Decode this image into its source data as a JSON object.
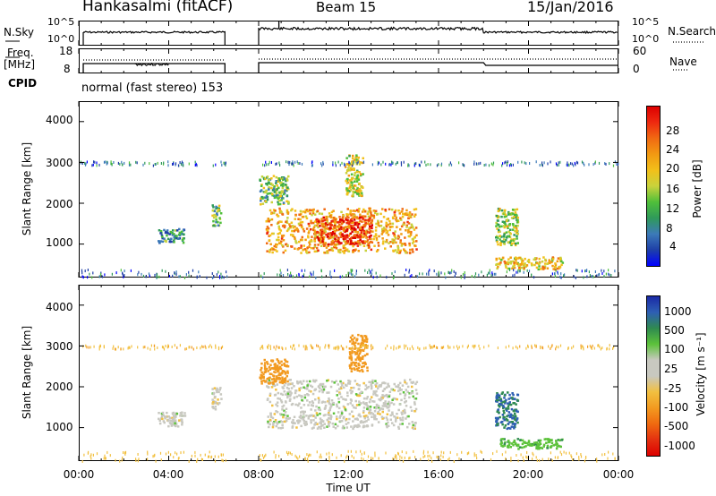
{
  "header": {
    "station": "Hankasalmi (fitACF)",
    "beam": "Beam 15",
    "date": "15/Jan/2016"
  },
  "noise_panel": {
    "left_label": "N.Sky",
    "left_ticks": [
      "10^5",
      "10^0"
    ],
    "right_label": "N.Search",
    "right_ticks": [
      "10^5",
      "10^0"
    ],
    "right_legend_line": "dotted"
  },
  "freq_panel": {
    "left_label_line1": "Freq.",
    "left_label_line2": "[MHz]",
    "left_ticks": [
      "18",
      "8"
    ],
    "right_label": "Nave",
    "right_ticks": [
      "60",
      "0"
    ],
    "right_legend_line": "dotted"
  },
  "cpid_panel": {
    "label": "CPID",
    "text": "normal (fast stereo) 153"
  },
  "power_colorbar": {
    "label": "Power [dB]",
    "ticks": [
      "28",
      "24",
      "20",
      "16",
      "12",
      "8",
      "4"
    ],
    "colors": [
      "#0000ff",
      "#1e3fa8",
      "#3c7ab8",
      "#2f9a5a",
      "#4fbf3a",
      "#c8d23c",
      "#f2c01a",
      "#f29a12",
      "#f06a12",
      "#ee2a10",
      "#dd0000"
    ]
  },
  "velocity_colorbar": {
    "label": "Velocity [m s⁻¹]",
    "ticks": [
      "1000",
      "500",
      "100",
      "25",
      "-25",
      "-100",
      "-500",
      "-1000"
    ],
    "colors": [
      "#1a2aa6",
      "#2e5fb4",
      "#2f8a50",
      "#5cc23a",
      "#c8c8c0",
      "#f2c040",
      "#f29a20",
      "#f06a10",
      "#e43010",
      "#dd0000"
    ]
  },
  "chart_data": [
    {
      "type": "line",
      "title": "Hankasalmi (fitACF)  Beam 15  15/Jan/2016",
      "xlabel": "Time UT",
      "x_ticks": [
        "00:00",
        "04:00",
        "08:00",
        "12:00",
        "16:00",
        "20:00",
        "00:00"
      ],
      "xlim_hours": [
        0,
        24
      ],
      "data_gap_hours": [
        6.6,
        8.0
      ],
      "series": [
        {
          "name": "N.Sky",
          "values": [
            {
              "t": 0.2,
              "level": "low"
            },
            {
              "t": 6.5,
              "level": "low"
            },
            {
              "t": 8.0,
              "level": "high"
            },
            {
              "t": 18.0,
              "level": "high"
            },
            {
              "t": 18.2,
              "level": "medium"
            },
            {
              "t": 24,
              "level": "medium"
            }
          ]
        },
        {
          "name": "N.Search",
          "line": "dotted"
        }
      ]
    },
    {
      "type": "line",
      "ylabel": "Freq. [MHz]",
      "ylim": [
        8,
        18
      ],
      "series": [
        {
          "name": "Freq.",
          "x": [
            0.2,
            6.5,
            8.0,
            18.0,
            18.2,
            24
          ],
          "values": [
            12.5,
            12.5,
            12.6,
            12.6,
            12.0,
            12.0
          ]
        },
        {
          "name": "Nave",
          "line": "dotted",
          "ylim": [
            0,
            60
          ],
          "x": [
            0.2,
            6.5,
            8.0,
            24
          ],
          "values": [
            33,
            33,
            34,
            34
          ]
        }
      ]
    },
    {
      "type": "heatmap",
      "ylabel": "Slant Range [km]",
      "y_ticks": [
        "4000",
        "3000",
        "2000",
        "1000"
      ],
      "ylim": [
        180,
        4500
      ],
      "value_label": "Power [dB]",
      "scatter_patches": [
        {
          "t": [
            3.5,
            4.7
          ],
          "r": [
            1050,
            1400
          ],
          "value": 8
        },
        {
          "t": [
            5.9,
            6.3
          ],
          "r": [
            1450,
            2000
          ],
          "value": 12
        },
        {
          "t": [
            8.3,
            15.0
          ],
          "r": [
            800,
            1900
          ],
          "value": 20
        },
        {
          "t": [
            10.5,
            13.0
          ],
          "r": [
            1000,
            1700
          ],
          "value": 26
        },
        {
          "t": [
            8.0,
            9.3
          ],
          "r": [
            2000,
            2700
          ],
          "value": 12
        },
        {
          "t": [
            11.8,
            12.6
          ],
          "r": [
            2200,
            3200
          ],
          "value": 16
        },
        {
          "t": [
            18.5,
            19.5
          ],
          "r": [
            1000,
            1900
          ],
          "value": 14
        },
        {
          "t": [
            18.5,
            21.5
          ],
          "r": [
            400,
            700
          ],
          "value": 18
        },
        {
          "t": [
            0,
            24
          ],
          "r": [
            200,
            400
          ],
          "value": 6
        },
        {
          "t": [
            0,
            24
          ],
          "r": [
            2950,
            3050
          ],
          "value": 6
        }
      ]
    },
    {
      "type": "heatmap",
      "ylabel": "Slant Range [km]",
      "xlabel": "Time UT",
      "y_ticks": [
        "4000",
        "3000",
        "2000",
        "1000"
      ],
      "ylim": [
        180,
        4500
      ],
      "value_label": "Velocity [m s⁻¹]",
      "scatter_patches": [
        {
          "t": [
            3.5,
            4.7
          ],
          "r": [
            1050,
            1400
          ],
          "value": 0
        },
        {
          "t": [
            5.9,
            6.3
          ],
          "r": [
            1450,
            2000
          ],
          "value": 0
        },
        {
          "t": [
            8.3,
            15.0
          ],
          "r": [
            1000,
            2200
          ],
          "value": 0
        },
        {
          "t": [
            8.0,
            9.3
          ],
          "r": [
            2100,
            2700
          ],
          "value": -400
        },
        {
          "t": [
            12.0,
            12.8
          ],
          "r": [
            2400,
            3300
          ],
          "value": -300
        },
        {
          "t": [
            18.5,
            19.5
          ],
          "r": [
            1000,
            1900
          ],
          "value": 300
        },
        {
          "t": [
            18.7,
            21.5
          ],
          "r": [
            500,
            750
          ],
          "value": 80
        },
        {
          "t": [
            0,
            24
          ],
          "r": [
            200,
            450
          ],
          "value": -60
        },
        {
          "t": [
            0,
            24
          ],
          "r": [
            2950,
            3050
          ],
          "value": -80
        }
      ]
    }
  ]
}
